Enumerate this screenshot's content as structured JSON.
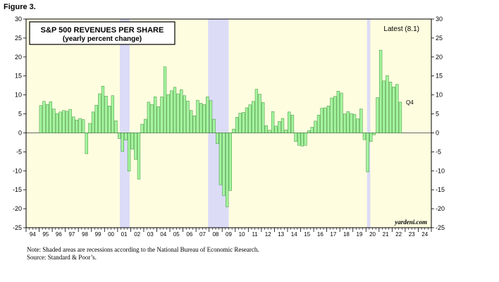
{
  "figure_label": "Figure 3.",
  "footnote": "Note: Shaded areas are recessions according to the National Bureau of Economic Research.",
  "source": "Source: Standard & Poor’s.",
  "chart_data": {
    "type": "bar",
    "title": "S&P 500 REVENUES PER SHARE",
    "subtitle": "(yearly percent change)",
    "latest_label": "Latest (8.1)",
    "end_label": "Q4",
    "watermark": "yardeni.com",
    "ylim": [
      -25,
      30
    ],
    "yticks": [
      -25,
      -20,
      -15,
      -10,
      -5,
      0,
      5,
      10,
      15,
      20,
      25,
      30
    ],
    "x_year_start": 1994,
    "x_year_end": 2024,
    "xtick_labels": [
      "94",
      "95",
      "96",
      "97",
      "98",
      "99",
      "00",
      "01",
      "02",
      "03",
      "04",
      "05",
      "06",
      "07",
      "08",
      "09",
      "10",
      "11",
      "12",
      "13",
      "14",
      "15",
      "16",
      "17",
      "18",
      "19",
      "20",
      "21",
      "22",
      "23",
      "24"
    ],
    "recessions": [
      [
        2001.17,
        2001.92
      ],
      [
        2007.92,
        2009.5
      ],
      [
        2020.08,
        2020.33
      ]
    ],
    "colors": {
      "bar_fill": "#a4f59e",
      "bar_stroke": "#3d8f3a",
      "background": "#fffde0",
      "recession": "#dcdcf7"
    },
    "series": [
      {
        "start_quarter": "1995-Q1",
        "values": [
          7.2,
          8.3,
          7.5,
          8.2,
          6.3,
          5.1,
          5.5,
          5.9,
          5.7,
          6.2,
          4.2,
          3.4,
          3.8,
          3.5,
          -5.5,
          2.5,
          5.5,
          7.3,
          10.3,
          12.3,
          9.7,
          7.1,
          9.8,
          3.2,
          -1.5,
          -4.9,
          -1.9,
          -10.1,
          -4.3,
          -7.0,
          -12.2,
          2.3,
          3.6,
          8.1,
          7.5,
          9.5,
          6.9,
          9.5,
          17.4,
          10.1,
          11.1,
          12.0,
          10.3,
          11.4,
          9.8,
          8.4,
          5.9,
          4.5,
          8.6,
          7.8,
          7.5,
          9.5,
          8.5,
          3.6,
          -2.8,
          -13.7,
          -16.5,
          -19.5,
          -15.2,
          1.0,
          4.1,
          5.2,
          5.4,
          6.6,
          7.4,
          8.3,
          11.5,
          10.2,
          8.0,
          1.9,
          0.7,
          5.6,
          1.8,
          3.0,
          3.8,
          0.8,
          5.5,
          4.7,
          -2.3,
          -3.3,
          -3.5,
          -3.3,
          0.6,
          1.5,
          3.1,
          4.7,
          6.5,
          6.6,
          7.1,
          9.2,
          9.6,
          11.0,
          10.5,
          5.0,
          5.6,
          5.1,
          4.9,
          3.7,
          6.3,
          -1.8,
          -10.3,
          -2.3,
          -0.5,
          9.3,
          21.8,
          13.7,
          15.1,
          13.4,
          12.1,
          12.8,
          8.1
        ]
      }
    ]
  }
}
